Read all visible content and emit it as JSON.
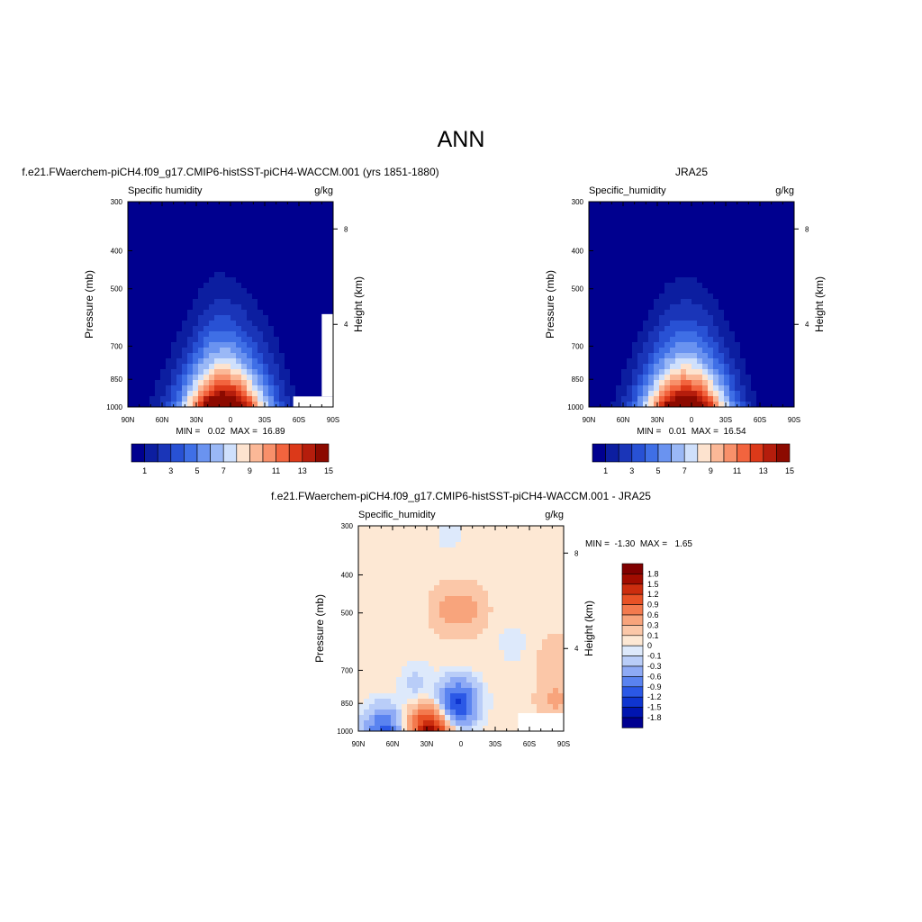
{
  "figure": {
    "main_title": "ANN",
    "colors": {
      "abs_scale": [
        "#00008f",
        "#0c1ea0",
        "#1a35b8",
        "#2851d4",
        "#3f6fe6",
        "#6a93f0",
        "#9ab8f6",
        "#cfe0fc",
        "#fde3cf",
        "#fbb897",
        "#f8906a",
        "#f2643e",
        "#dc3919",
        "#b51d0c",
        "#8c0a00"
      ],
      "diff_scale": [
        "#000090",
        "#0015b0",
        "#0f35d0",
        "#2b58e6",
        "#5a83f0",
        "#8eaaf5",
        "#b9cdf8",
        "#dde9fb",
        "#fde8d4",
        "#fbc7a8",
        "#f8a47c",
        "#f37a4e",
        "#e85226",
        "#cc2d0e",
        "#a10c00",
        "#800000"
      ],
      "missing": "#ffffff"
    }
  },
  "chart_data": [
    {
      "type": "contour",
      "title": "f.e21.FWaerchem-piCH4.f09_g17.CMIP6-histSST-piCH4-WACCM.001 (yrs 1851-1880)",
      "left_string": "Specific humidity",
      "right_string": "g/kg",
      "ylabel": "Pressure (mb)",
      "ylabel_right": "Height (km)",
      "x_ticks": [
        "90N",
        "60N",
        "30N",
        "0",
        "30S",
        "60S",
        "90S"
      ],
      "y_ticks": [
        "300",
        "400",
        "500",
        "700",
        "850",
        "1000"
      ],
      "y_ticks_right": [
        "8",
        "4"
      ],
      "xlim": [
        90,
        -90
      ],
      "ylim": [
        1000,
        300
      ],
      "stats": "MIN =   0.02  MAX =  16.89",
      "min": 0.02,
      "max": 16.89,
      "contour_levels": [
        1,
        2,
        3,
        4,
        5,
        6,
        7,
        8,
        9,
        10,
        11,
        12,
        13,
        14,
        15
      ],
      "colorbar_labels": [
        "1",
        "3",
        "5",
        "7",
        "9",
        "11",
        "13",
        "15"
      ],
      "peak_value": 16.89,
      "peak_lat": 5,
      "peak_pressure": 1000,
      "missing_regions": [
        {
          "lat_from": -55,
          "lat_to": -90,
          "p_top": 940,
          "p_bottom": 1000
        },
        {
          "lat_from": -80,
          "lat_to": -90,
          "p_top": 580,
          "p_bottom": 940
        }
      ]
    },
    {
      "type": "contour",
      "title": "JRA25",
      "left_string": "Specific_humidity",
      "right_string": "g/kg",
      "ylabel": "Pressure (mb)",
      "ylabel_right": "Height (km)",
      "x_ticks": [
        "90N",
        "60N",
        "30N",
        "0",
        "30S",
        "60S",
        "90S"
      ],
      "y_ticks": [
        "300",
        "400",
        "500",
        "700",
        "850",
        "1000"
      ],
      "y_ticks_right": [
        "8",
        "4"
      ],
      "xlim": [
        90,
        -90
      ],
      "ylim": [
        1000,
        300
      ],
      "stats": "MIN =   0.01  MAX =  16.54",
      "min": 0.01,
      "max": 16.54,
      "contour_levels": [
        1,
        2,
        3,
        4,
        5,
        6,
        7,
        8,
        9,
        10,
        11,
        12,
        13,
        14,
        15
      ],
      "colorbar_labels": [
        "1",
        "3",
        "5",
        "7",
        "9",
        "11",
        "13",
        "15"
      ],
      "peak_value": 16.54,
      "peak_lat": 5,
      "peak_pressure": 1000,
      "missing_regions": []
    },
    {
      "type": "contour",
      "title": "f.e21.FWaerchem-piCH4.f09_g17.CMIP6-histSST-piCH4-WACCM.001 - JRA25",
      "left_string": "Specific_humidity",
      "right_string": "g/kg",
      "ylabel": "Pressure (mb)",
      "ylabel_right": "Height (km)",
      "x_ticks": [
        "90N",
        "60N",
        "30N",
        "0",
        "30S",
        "60S",
        "90S"
      ],
      "y_ticks": [
        "300",
        "400",
        "500",
        "700",
        "850",
        "1000"
      ],
      "y_ticks_right": [
        "8",
        "4"
      ],
      "xlim": [
        90,
        -90
      ],
      "ylim": [
        1000,
        300
      ],
      "stats": "MIN =  -1.30  MAX =   1.65",
      "min": -1.3,
      "max": 1.65,
      "contour_levels": [
        -1.8,
        -1.5,
        -1.2,
        -0.9,
        -0.6,
        -0.3,
        -0.1,
        0,
        0.1,
        0.3,
        0.6,
        0.9,
        1.2,
        1.5,
        1.8
      ],
      "colorbar_labels": [
        "1.8",
        "1.5",
        "1.2",
        "0.9",
        "0.6",
        "0.3",
        "0.1",
        "0",
        "-0.1",
        "-0.3",
        "-0.6",
        "-0.9",
        "-1.2",
        "-1.5",
        "-1.8"
      ],
      "background_value": 0.05,
      "features": [
        {
          "lat": 3,
          "p": 850,
          "value": -1.3
        },
        {
          "lat": 12,
          "p": 490,
          "value": 0.35
        },
        {
          "lat": -8,
          "p": 490,
          "value": 0.35
        },
        {
          "lat": 27,
          "p": 990,
          "value": 1.65
        },
        {
          "lat": 68,
          "p": 995,
          "value": -1.0
        },
        {
          "lat": -82,
          "p": 830,
          "value": 0.35
        },
        {
          "lat": -82,
          "p": 640,
          "value": 0.2
        },
        {
          "lat": 40,
          "p": 760,
          "value": -0.15
        },
        {
          "lat": -45,
          "p": 600,
          "value": -0.05
        },
        {
          "lat": 10,
          "p": 310,
          "value": -0.05
        }
      ],
      "missing_regions": [
        {
          "lat_from": -50,
          "lat_to": -90,
          "p_top": 900,
          "p_bottom": 1000
        }
      ]
    }
  ]
}
